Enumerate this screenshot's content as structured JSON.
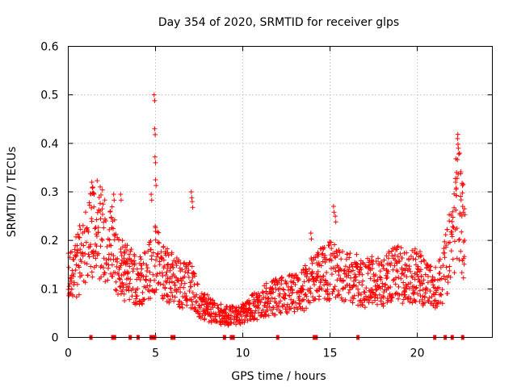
{
  "chart_data": {
    "type": "scatter",
    "title": "Day 354 of 2020, SRMTID for receiver glps",
    "xlabel": "GPS time / hours",
    "ylabel": "SRMTID / TECUs",
    "xlim": [
      0,
      24.3
    ],
    "ylim": [
      0,
      0.6
    ],
    "x_ticks": [
      0,
      5,
      10,
      15,
      20
    ],
    "y_ticks": [
      0,
      0.1,
      0.2,
      0.3,
      0.4,
      0.5,
      0.6
    ],
    "x_tick_labels": [
      "0",
      "5",
      "10",
      "15",
      "20"
    ],
    "y_tick_labels": [
      "0",
      "0.1",
      "0.2",
      "0.3",
      "0.4",
      "0.5",
      "0.6"
    ],
    "grid": true,
    "marker": "plus",
    "color": "#ff0000",
    "series": [
      {
        "name": "SRMTID",
        "profile": [
          {
            "x": 0.0,
            "y": 0.12
          },
          {
            "x": 0.5,
            "y": 0.15
          },
          {
            "x": 1.0,
            "y": 0.18
          },
          {
            "x": 1.5,
            "y": 0.23
          },
          {
            "x": 2.0,
            "y": 0.21
          },
          {
            "x": 2.5,
            "y": 0.19
          },
          {
            "x": 3.0,
            "y": 0.14
          },
          {
            "x": 3.5,
            "y": 0.13
          },
          {
            "x": 4.0,
            "y": 0.12
          },
          {
            "x": 4.5,
            "y": 0.13
          },
          {
            "x": 5.0,
            "y": 0.16
          },
          {
            "x": 5.5,
            "y": 0.14
          },
          {
            "x": 6.0,
            "y": 0.12
          },
          {
            "x": 6.5,
            "y": 0.11
          },
          {
            "x": 7.0,
            "y": 0.11
          },
          {
            "x": 7.5,
            "y": 0.07
          },
          {
            "x": 8.0,
            "y": 0.06
          },
          {
            "x": 8.5,
            "y": 0.05
          },
          {
            "x": 9.0,
            "y": 0.045
          },
          {
            "x": 9.5,
            "y": 0.045
          },
          {
            "x": 10.0,
            "y": 0.05
          },
          {
            "x": 10.5,
            "y": 0.06
          },
          {
            "x": 11.0,
            "y": 0.07
          },
          {
            "x": 11.5,
            "y": 0.08
          },
          {
            "x": 12.0,
            "y": 0.085
          },
          {
            "x": 12.5,
            "y": 0.09
          },
          {
            "x": 13.0,
            "y": 0.09
          },
          {
            "x": 13.5,
            "y": 0.1
          },
          {
            "x": 14.0,
            "y": 0.12
          },
          {
            "x": 14.5,
            "y": 0.13
          },
          {
            "x": 15.0,
            "y": 0.14
          },
          {
            "x": 15.5,
            "y": 0.13
          },
          {
            "x": 16.0,
            "y": 0.12
          },
          {
            "x": 16.5,
            "y": 0.12
          },
          {
            "x": 17.0,
            "y": 0.11
          },
          {
            "x": 17.5,
            "y": 0.12
          },
          {
            "x": 18.0,
            "y": 0.11
          },
          {
            "x": 18.5,
            "y": 0.13
          },
          {
            "x": 19.0,
            "y": 0.13
          },
          {
            "x": 19.5,
            "y": 0.12
          },
          {
            "x": 20.0,
            "y": 0.13
          },
          {
            "x": 20.5,
            "y": 0.11
          },
          {
            "x": 21.0,
            "y": 0.1
          },
          {
            "x": 21.5,
            "y": 0.13
          },
          {
            "x": 22.0,
            "y": 0.2
          },
          {
            "x": 22.3,
            "y": 0.3
          },
          {
            "x": 22.7,
            "y": 0.2
          }
        ],
        "peaks": [
          {
            "x": 4.92,
            "y": 0.5
          },
          {
            "x": 4.95,
            "y": 0.43
          },
          {
            "x": 4.97,
            "y": 0.372
          },
          {
            "x": 5.0,
            "y": 0.325
          },
          {
            "x": 4.75,
            "y": 0.295
          },
          {
            "x": 1.35,
            "y": 0.32
          },
          {
            "x": 1.4,
            "y": 0.31
          },
          {
            "x": 2.6,
            "y": 0.295
          },
          {
            "x": 3.0,
            "y": 0.295
          },
          {
            "x": 7.05,
            "y": 0.3
          },
          {
            "x": 7.1,
            "y": 0.28
          },
          {
            "x": 22.3,
            "y": 0.41
          },
          {
            "x": 22.35,
            "y": 0.39
          },
          {
            "x": 22.25,
            "y": 0.34
          },
          {
            "x": 22.2,
            "y": 0.32
          },
          {
            "x": 15.2,
            "y": 0.27
          },
          {
            "x": 15.3,
            "y": 0.25
          },
          {
            "x": 13.9,
            "y": 0.215
          },
          {
            "x": 22.6,
            "y": 0.27
          },
          {
            "x": 22.7,
            "y": 0.265
          }
        ]
      }
    ],
    "zero_markers_x": [
      1.3,
      2.55,
      2.65,
      3.55,
      4.0,
      4.75,
      4.85,
      4.95,
      5.95,
      6.05,
      8.95,
      9.35,
      9.45,
      12.0,
      14.1,
      14.2,
      16.6,
      21.0,
      21.6,
      22.0,
      22.6
    ]
  }
}
